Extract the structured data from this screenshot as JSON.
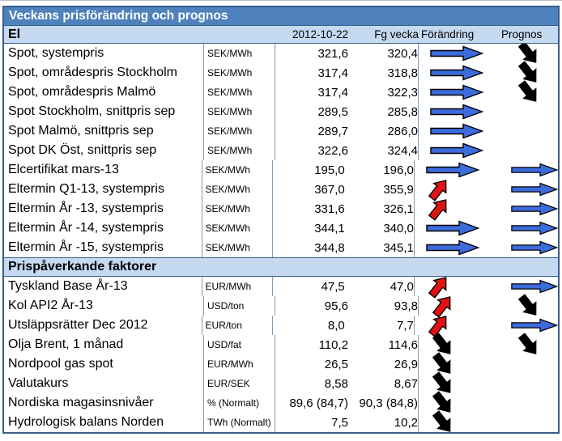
{
  "title": "Veckans prisförändring och prognos",
  "columns": {
    "date": "2012-10-22",
    "prev_week": "Fg vecka",
    "change": "Förändring",
    "forecast": "Prognos"
  },
  "colors": {
    "header_bg": "#4F81BD",
    "section_bg": "#C5D9F1",
    "frame": "#385D8A",
    "grid": "#7F9DB9",
    "arrow_flat": "#3C6BDC",
    "arrow_up": "#E11212",
    "arrow_down": "#000000"
  },
  "sections": [
    {
      "label": "El",
      "rows": [
        {
          "name": "Spot, systempris",
          "unit": "SEK/MWh",
          "current": "321,6",
          "prev": "320,4",
          "change": "flat",
          "forecast": "down"
        },
        {
          "name": "Spot, områdespris Stockholm",
          "unit": "SEK/MWh",
          "current": "317,4",
          "prev": "318,8",
          "change": "flat",
          "forecast": "down"
        },
        {
          "name": "Spot, områdespris Malmö",
          "unit": "SEK/MWh",
          "current": "317,4",
          "prev": "322,3",
          "change": "flat",
          "forecast": "down"
        },
        {
          "name": "Spot Stockholm, snittpris sep",
          "unit": "SEK/MWh",
          "current": "289,5",
          "prev": "285,8",
          "change": "flat",
          "forecast": "none"
        },
        {
          "name": "Spot Malmö, snittpris sep",
          "unit": "SEK/MWh",
          "current": "289,7",
          "prev": "286,0",
          "change": "flat",
          "forecast": "none"
        },
        {
          "name": "Spot DK Öst, snittpris sep",
          "unit": "SEK/MWh",
          "current": "322,6",
          "prev": "324,4",
          "change": "flat",
          "forecast": "none"
        },
        {
          "name": "Elcertifikat mars-13",
          "unit": "SEK/MWh",
          "current": "195,0",
          "prev": "196,0",
          "change": "flat",
          "forecast": "flat"
        },
        {
          "name": "Eltermin Q1-13, systempris",
          "unit": "SEK/MWh",
          "current": "367,0",
          "prev": "355,9",
          "change": "up",
          "forecast": "flat"
        },
        {
          "name": "Eltermin År -13, systempris",
          "unit": "SEK/MWh",
          "current": "331,6",
          "prev": "326,1",
          "change": "up",
          "forecast": "flat"
        },
        {
          "name": "Eltermin År -14, systempris",
          "unit": "SEK/MWh",
          "current": "344,1",
          "prev": "340,0",
          "change": "flat",
          "forecast": "flat"
        },
        {
          "name": "Eltermin År -15, systempris",
          "unit": "SEK/MWh",
          "current": "344,8",
          "prev": "345,1",
          "change": "flat",
          "forecast": "flat"
        }
      ]
    },
    {
      "label": "Prispåverkande faktorer",
      "rows": [
        {
          "name": "Tyskland Base År-13",
          "unit": "EUR/MWh",
          "current": "47,5",
          "prev": "47,0",
          "change": "up",
          "forecast": "flat"
        },
        {
          "name": "Kol API2 År-13",
          "unit": "USD/ton",
          "current": "95,6",
          "prev": "93,8",
          "change": "up",
          "forecast": "down"
        },
        {
          "name": "Utsläppsrätter Dec 2012",
          "unit": "EUR/ton",
          "current": "8,0",
          "prev": "7,7",
          "change": "up",
          "forecast": "flat"
        },
        {
          "name": "Olja Brent, 1 månad",
          "unit": "USD/fat",
          "current": "110,2",
          "prev": "114,6",
          "change": "down",
          "forecast": "down"
        },
        {
          "name": "Nordpool gas spot",
          "unit": "EUR/MWh",
          "current": "26,5",
          "prev": "26,9",
          "change": "down",
          "forecast": "none"
        },
        {
          "name": "Valutakurs",
          "unit": "EUR/SEK",
          "current": "8,58",
          "prev": "8,67",
          "change": "down",
          "forecast": "none"
        },
        {
          "name": "Nordiska magasinsnivåer",
          "unit": "% (Normalt)",
          "current": "89,6 (84,7)",
          "prev": "90,3 (84,8)",
          "change": "down",
          "forecast": "none"
        },
        {
          "name": "Hydrologisk balans Norden",
          "unit": "TWh (Normalt)",
          "current": "7,5",
          "prev": "10,2",
          "change": "down",
          "forecast": "none"
        }
      ]
    }
  ]
}
